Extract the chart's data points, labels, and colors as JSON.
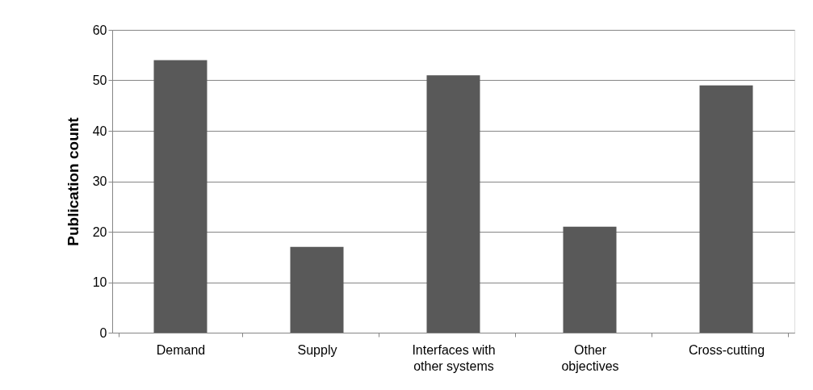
{
  "chart_data": {
    "type": "bar",
    "ylabel": "Publication count",
    "categories": [
      "Demand",
      "Supply",
      "Interfaces with other systems",
      "Other objectives",
      "Cross-cutting"
    ],
    "values": [
      54,
      17,
      51,
      21,
      49
    ],
    "color": "#595959",
    "ylim": [
      0,
      60
    ],
    "yticks": [
      0,
      10,
      20,
      30,
      40,
      50,
      60
    ],
    "grid": "y"
  }
}
